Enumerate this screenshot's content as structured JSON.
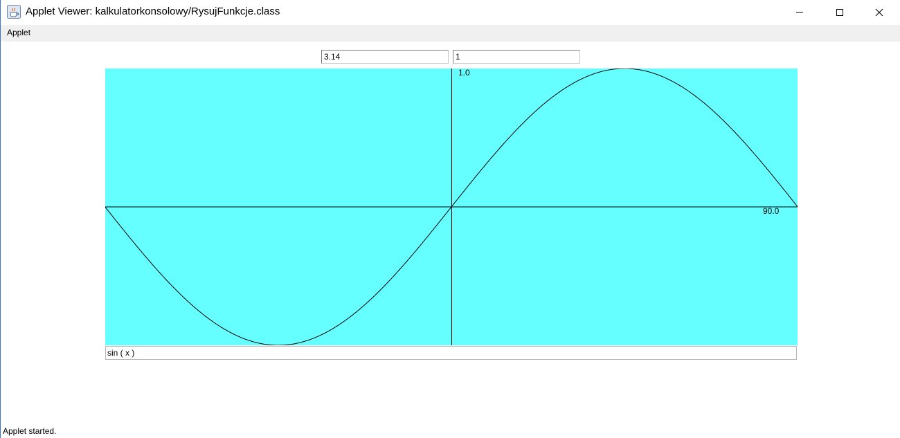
{
  "window": {
    "title": "Applet Viewer: kalkulatorkonsolowy/RysujFunkcje.class",
    "icon": "java-cup-icon",
    "controls": [
      "minimize-icon",
      "maximize-icon",
      "close-icon"
    ]
  },
  "menu": {
    "items": [
      "Applet"
    ]
  },
  "inputs": {
    "field1": "3.14",
    "field2": "1"
  },
  "plot": {
    "background": "#66ffff",
    "curve_color": "#000000",
    "y_label": "1.0",
    "x_label": "90.0"
  },
  "chart_data": {
    "type": "line",
    "function": "sin(x)",
    "xlim": [
      -3.14,
      3.14
    ],
    "ylim": [
      -1,
      1
    ],
    "series": [
      {
        "x": [
          -3.14,
          -2.36,
          -1.57,
          -0.79,
          0,
          0.79,
          1.57,
          2.36,
          3.14
        ],
        "values": [
          0,
          -0.71,
          -1,
          -0.71,
          0,
          0.71,
          1,
          0.71,
          0
        ]
      }
    ],
    "tick_labels": [
      "1.0",
      "90.0"
    ]
  },
  "formula": {
    "value": "sin ( x )"
  },
  "status": {
    "text": "Applet started."
  }
}
